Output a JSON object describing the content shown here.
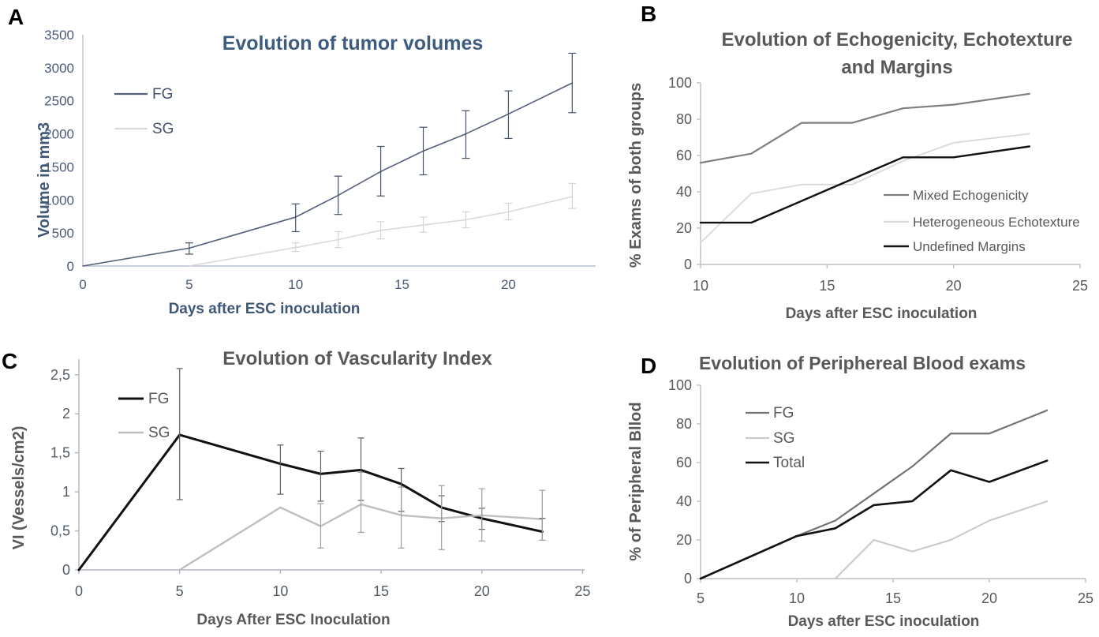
{
  "chart_data": [
    {
      "panel_label": "A",
      "type": "line",
      "title_lines": [
        "Evolution of tumor volumes"
      ],
      "xlabel": "Days after ESC inoculation",
      "ylabel": "Volume in mm3",
      "xlim": [
        0,
        24.1
      ],
      "ylim": [
        0,
        3500
      ],
      "xtick_vals": [
        0,
        5,
        10,
        15,
        20
      ],
      "xtick_labels": [
        "0",
        "5",
        "10",
        "15",
        "20"
      ],
      "ytick_vals": [
        0,
        500,
        1000,
        1500,
        2000,
        2500,
        3000,
        3500
      ],
      "ytick_labels": [
        "0",
        "500",
        "1000",
        "1500",
        "2000",
        "2500",
        "3000",
        "3500"
      ],
      "grid": false,
      "legend_position": "upper-left-inside",
      "title_color": "#3e5c80",
      "label_color": "#3f5878",
      "tick_color": "#4a5a78",
      "axis_color": "#b8c2d1",
      "legend_text_color": "#44546a",
      "series": [
        {
          "name": "FG",
          "color": "#55607a",
          "err_color": "#44546a",
          "width": 1.6,
          "x": [
            0,
            5,
            10,
            12,
            14,
            16,
            18,
            20,
            23
          ],
          "y": [
            0,
            270,
            740,
            1070,
            1430,
            1740,
            2000,
            2300,
            2770
          ],
          "err_lo": [
            null,
            180,
            520,
            780,
            1060,
            1380,
            1630,
            1930,
            2320
          ],
          "err_hi": [
            null,
            350,
            940,
            1360,
            1810,
            2100,
            2350,
            2650,
            3220
          ]
        },
        {
          "name": "SG",
          "color": "#d9d9d9",
          "err_color": "#d4d4d4",
          "width": 1.6,
          "x": [
            5,
            10,
            12,
            14,
            16,
            18,
            20,
            23
          ],
          "y": [
            0,
            280,
            400,
            540,
            620,
            700,
            820,
            1050
          ],
          "err_lo": [
            null,
            220,
            280,
            410,
            510,
            580,
            700,
            870
          ],
          "err_hi": [
            null,
            350,
            520,
            670,
            740,
            820,
            950,
            1250
          ]
        }
      ]
    },
    {
      "panel_label": "B",
      "type": "line",
      "title_lines": [
        "Evolution of  Echogenicity, Echotexture",
        "and Margins"
      ],
      "xlabel": "Days after ESC inoculation",
      "ylabel": "% Exams of both groups",
      "xlim": [
        10,
        25
      ],
      "ylim": [
        0,
        100
      ],
      "xtick_vals": [
        10,
        15,
        20,
        25
      ],
      "xtick_labels": [
        "10",
        "15",
        "20",
        "25"
      ],
      "ytick_vals": [
        0,
        20,
        40,
        60,
        80,
        100
      ],
      "ytick_labels": [
        "0",
        "20",
        "40",
        "60",
        "80",
        "100"
      ],
      "grid": false,
      "legend_position": "right-middle-inside",
      "title_color": "#595959",
      "label_color": "#595959",
      "tick_color": "#595959",
      "axis_color": "#bfbfbf",
      "legend_text_color": "#595959",
      "series": [
        {
          "name": "Mixed Echogenicity",
          "color": "#7f7f7f",
          "width": 2.2,
          "x": [
            10,
            12,
            14,
            16,
            18,
            20,
            23
          ],
          "y": [
            56,
            61,
            78,
            78,
            86,
            88,
            94
          ]
        },
        {
          "name": "Heterogeneous Echotexture",
          "color": "#d9d9d9",
          "width": 1.8,
          "x": [
            10,
            12,
            14,
            16,
            18,
            20,
            23
          ],
          "y": [
            12,
            39,
            44,
            44,
            57,
            67,
            72
          ]
        },
        {
          "name": "Undefined Margins",
          "color": "#121212",
          "width": 2.4,
          "x": [
            10,
            12,
            14,
            16,
            18,
            20,
            23
          ],
          "y": [
            23,
            23,
            35,
            47,
            59,
            59,
            65
          ]
        }
      ]
    },
    {
      "panel_label": "C",
      "type": "line",
      "title_lines": [
        "Evolution of Vascularity Index"
      ],
      "xlabel": "Days After ESC Inoculation",
      "ylabel": "VI (Vessels/cm2)",
      "xlim": [
        0,
        25.1
      ],
      "ylim": [
        0,
        2.7
      ],
      "xtick_vals": [
        0,
        5,
        10,
        15,
        20,
        25
      ],
      "xtick_labels": [
        "0",
        "5",
        "10",
        "15",
        "20",
        "25"
      ],
      "ytick_vals": [
        0,
        0.5,
        1,
        1.5,
        2,
        2.5
      ],
      "ytick_labels": [
        "0",
        "0,5",
        "1",
        "1,5",
        "2",
        "2,5"
      ],
      "grid": false,
      "legend_position": "upper-left-inside",
      "title_color": "#595959",
      "label_color": "#595959",
      "tick_color": "#525c66",
      "axis_color": "#b0b7c2",
      "legend_text_color": "#595959",
      "series": [
        {
          "name": "FG",
          "color": "#111111",
          "err_color": "#5f5f5f",
          "width": 3,
          "x": [
            0,
            5,
            10,
            12,
            14,
            16,
            18,
            20,
            23
          ],
          "y": [
            0,
            1.73,
            1.36,
            1.23,
            1.28,
            1.1,
            0.8,
            0.66,
            0.49
          ],
          "err_lo": [
            null,
            0.9,
            0.97,
            0.88,
            0.89,
            0.75,
            0.62,
            0.52,
            0.38
          ],
          "err_hi": [
            null,
            2.58,
            1.6,
            1.52,
            1.69,
            1.3,
            0.95,
            0.79,
            0.66
          ]
        },
        {
          "name": "SG",
          "color": "#bfbfbf",
          "err_color": "#9e9e9e",
          "width": 2.4,
          "x": [
            5,
            10,
            12,
            14,
            16,
            18,
            20,
            23
          ],
          "y": [
            0,
            0.8,
            0.56,
            0.84,
            0.7,
            0.66,
            0.7,
            0.65
          ],
          "err_lo": [
            null,
            null,
            0.28,
            0.48,
            0.28,
            0.26,
            0.37,
            0.38
          ],
          "err_hi": [
            null,
            null,
            0.85,
            1.25,
            1.06,
            1.08,
            1.04,
            1.02
          ]
        }
      ]
    },
    {
      "panel_label": "D",
      "type": "line",
      "title_lines": [
        "Evolution of Periphereal Blood exams"
      ],
      "xlabel": "Days after ESC inoculation",
      "ylabel": "% of Peripheral Bllod",
      "xlim": [
        5,
        25
      ],
      "ylim": [
        0,
        100
      ],
      "xtick_vals": [
        5,
        10,
        15,
        20,
        25
      ],
      "xtick_labels": [
        "5",
        "10",
        "15",
        "20",
        "25"
      ],
      "ytick_vals": [
        0,
        20,
        40,
        60,
        80,
        100
      ],
      "ytick_labels": [
        "0",
        "20",
        "40",
        "60",
        "80",
        "100"
      ],
      "grid": false,
      "legend_position": "upper-left-inside",
      "title_color": "#595959",
      "label_color": "#595959",
      "tick_color": "#595959",
      "axis_color": "#bfbfbf",
      "legend_text_color": "#595959",
      "series": [
        {
          "name": "FG",
          "color": "#737373",
          "width": 2.2,
          "x": [
            5,
            10,
            12,
            14,
            16,
            18,
            20,
            23
          ],
          "y": [
            0,
            22,
            30,
            44,
            58,
            75,
            75,
            87
          ]
        },
        {
          "name": "SG",
          "color": "#c9c9c9",
          "width": 2,
          "x": [
            12,
            14,
            16,
            18,
            20,
            23
          ],
          "y": [
            0,
            20,
            14,
            20,
            30,
            40
          ]
        },
        {
          "name": "Total",
          "color": "#111111",
          "width": 2.6,
          "x": [
            5,
            10,
            12,
            14,
            16,
            18,
            20,
            23
          ],
          "y": [
            0,
            22,
            26,
            38,
            40,
            56,
            50,
            61
          ]
        }
      ]
    }
  ]
}
